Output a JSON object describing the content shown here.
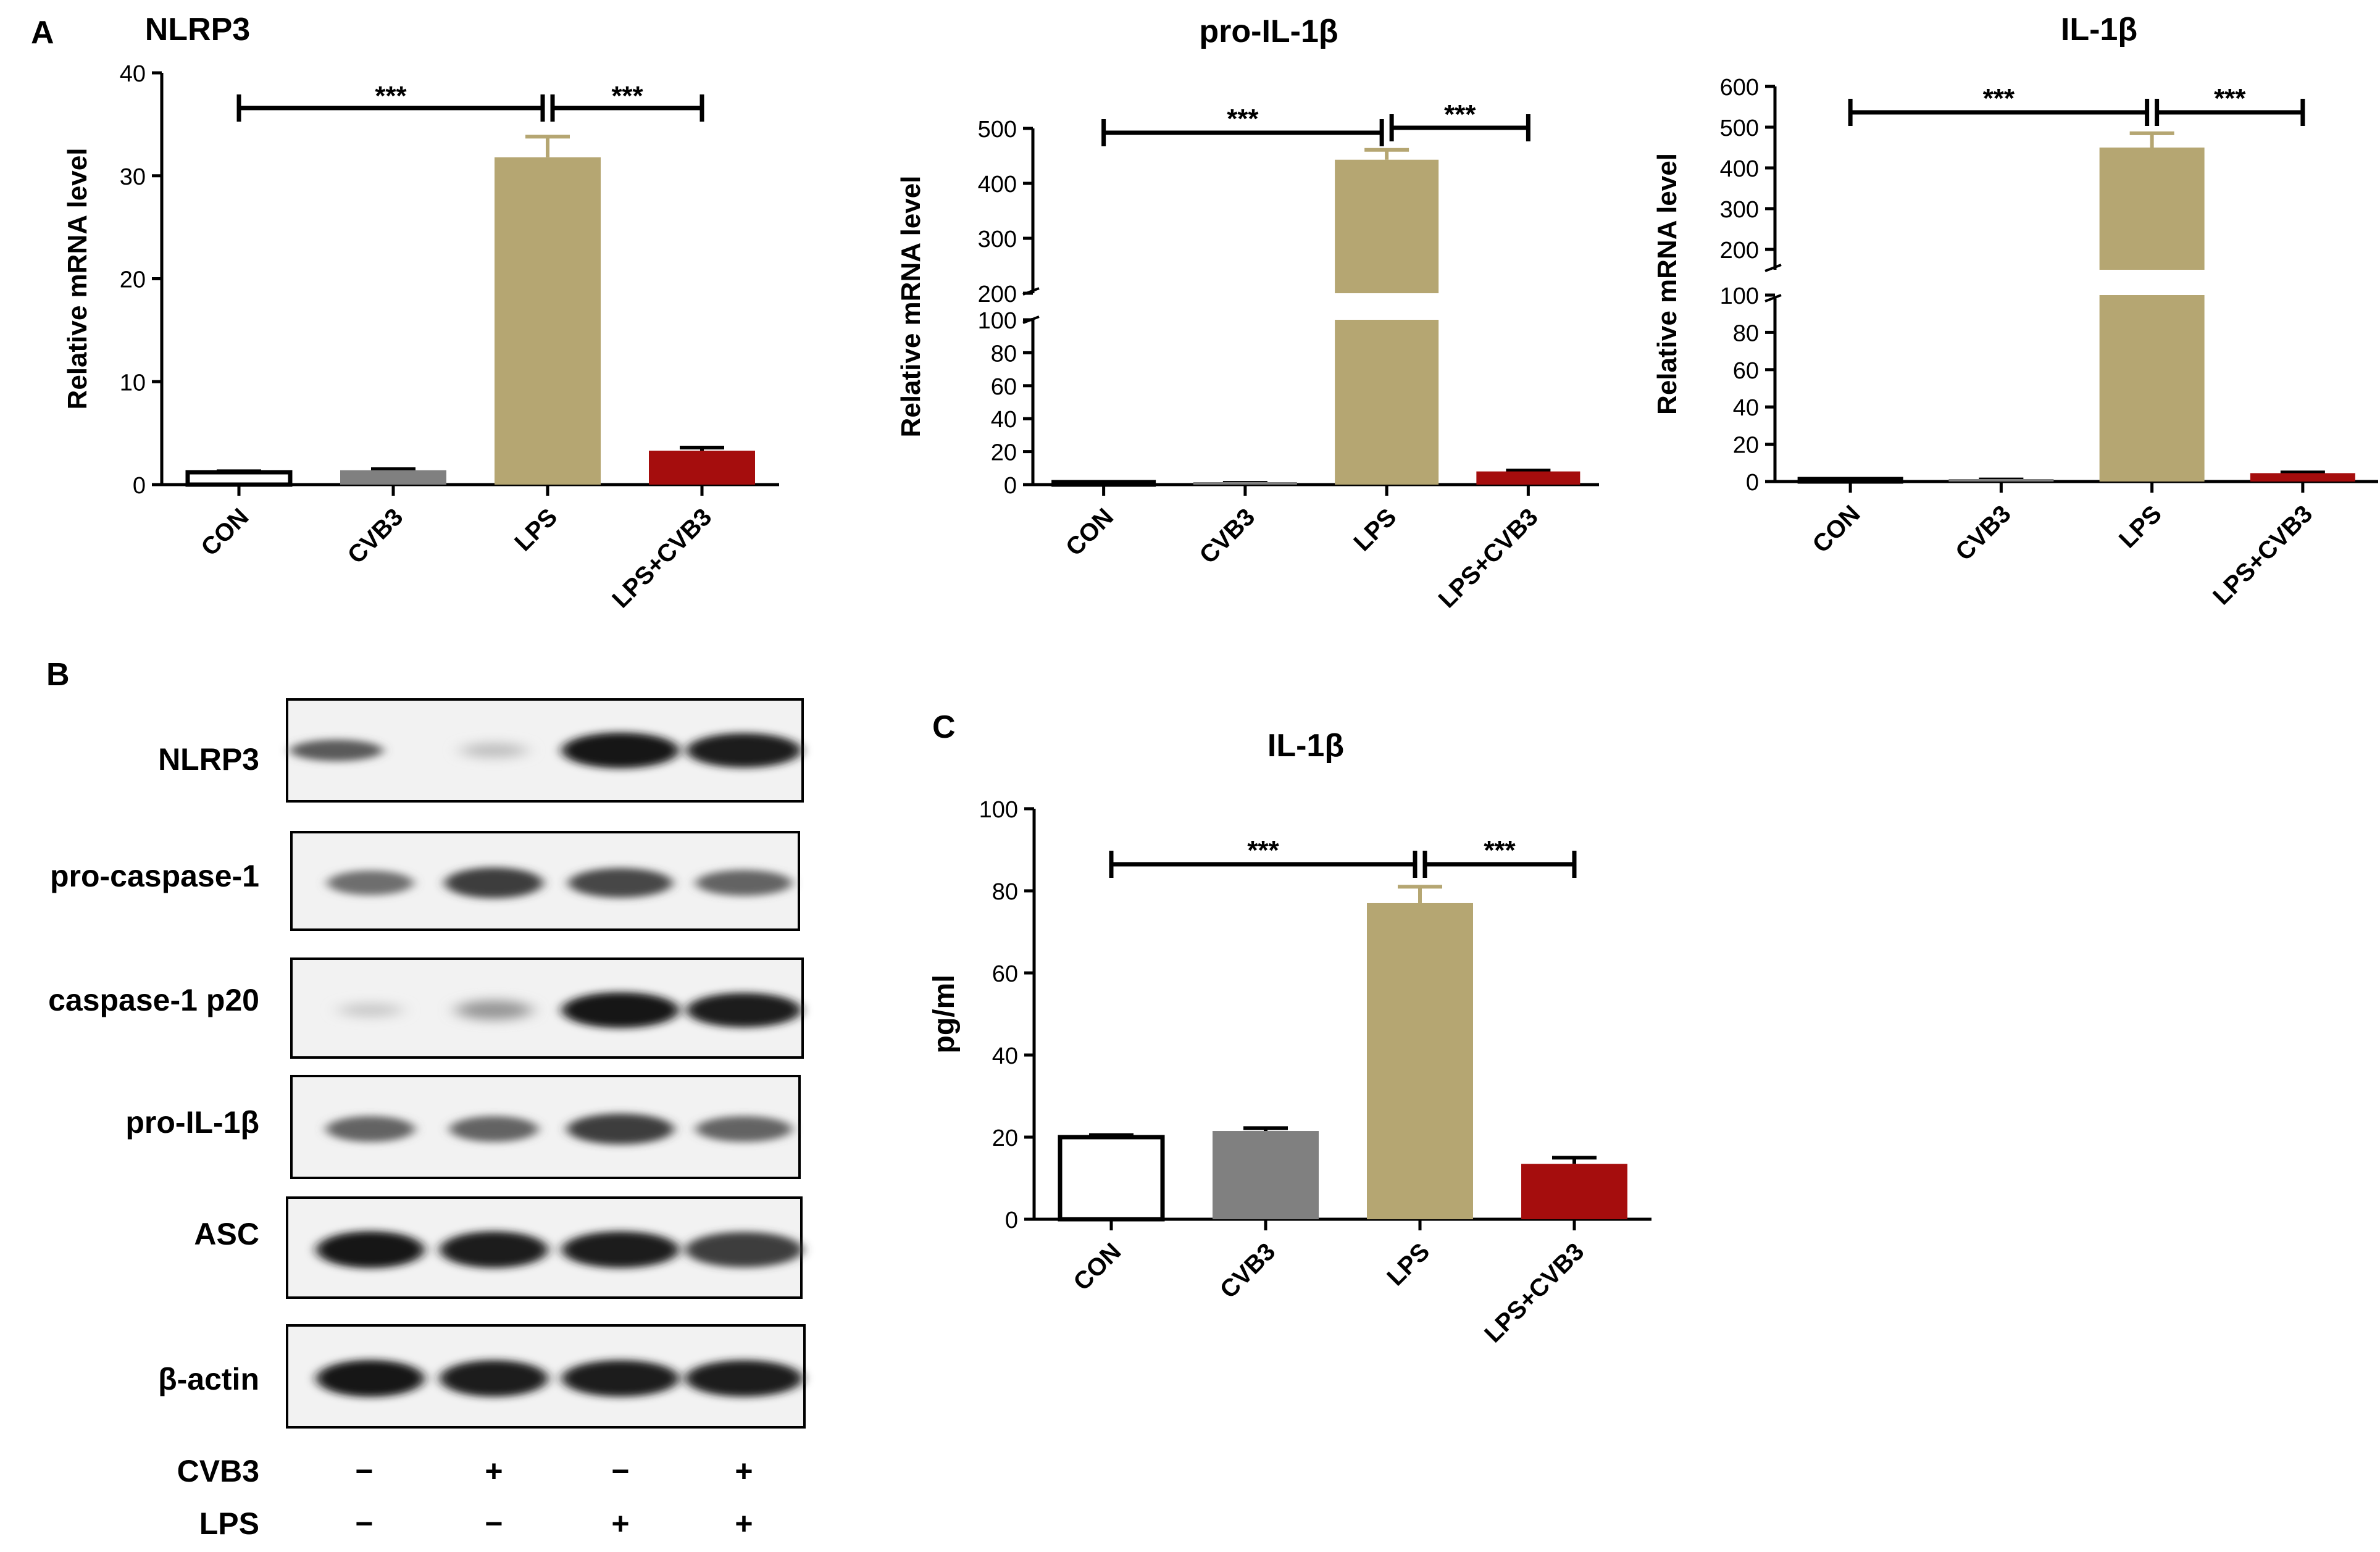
{
  "panels": {
    "A": "A",
    "B": "B",
    "C": "C"
  },
  "sig_label": "***",
  "colors": {
    "CON": "#ffffff",
    "CVB3": "#808080",
    "LPS": "#b5a672",
    "LPS+CVB3": "#a50d0d",
    "LPS_err": "#b5a672",
    "axis": "#000000"
  },
  "chart_data": [
    {
      "type": "bar",
      "title": "NLRP3",
      "ylabel": "Relative mRNA level",
      "categories": [
        "CON",
        "CVB3",
        "LPS",
        "LPS+CVB3"
      ],
      "values": [
        1.2,
        1.4,
        31.8,
        3.3
      ],
      "errors": [
        0.1,
        0.1,
        2.0,
        0.3
      ],
      "ylim": [
        0,
        40
      ],
      "yticks": [
        "0",
        "10",
        "20",
        "30",
        "40"
      ],
      "broken_axis": false,
      "significance": [
        {
          "from": "CON",
          "to": "LPS",
          "label": "***"
        },
        {
          "from": "LPS",
          "to": "LPS+CVB3",
          "label": "***"
        }
      ]
    },
    {
      "type": "bar",
      "title": "pro-IL-1β",
      "ylabel": "Relative mRNA level",
      "categories": [
        "CON",
        "CVB3",
        "LPS",
        "LPS+CVB3"
      ],
      "values": [
        1.0,
        1.0,
        443,
        8.0
      ],
      "errors": [
        0.1,
        0.1,
        18,
        0.5
      ],
      "broken_axis": true,
      "lower_range": [
        0,
        100
      ],
      "upper_range": [
        200,
        500
      ],
      "lower_ticks": [
        "0",
        "20",
        "40",
        "60",
        "80",
        "100"
      ],
      "upper_ticks": [
        "200",
        "300",
        "400",
        "500"
      ],
      "significance": [
        {
          "from": "CON",
          "to": "LPS",
          "label": "***"
        },
        {
          "from": "LPS",
          "to": "LPS+CVB3",
          "label": "***"
        }
      ]
    },
    {
      "type": "bar",
      "title": "IL-1β",
      "ylabel": "Relative mRNA level",
      "categories": [
        "CON",
        "CVB3",
        "LPS",
        "LPS+CVB3"
      ],
      "values": [
        1.0,
        1.0,
        450,
        4.5
      ],
      "errors": [
        0.1,
        0.1,
        35,
        0.4
      ],
      "broken_axis": true,
      "lower_range": [
        0,
        100
      ],
      "upper_range": [
        150,
        600
      ],
      "lower_ticks": [
        "0",
        "20",
        "40",
        "60",
        "80",
        "100"
      ],
      "upper_ticks": [
        "200",
        "300",
        "400",
        "500",
        "600"
      ],
      "significance": [
        {
          "from": "CON",
          "to": "LPS",
          "label": "***"
        },
        {
          "from": "LPS",
          "to": "LPS+CVB3",
          "label": "***"
        }
      ]
    },
    {
      "type": "bar",
      "title": "IL-1β",
      "ylabel": "pg/ml",
      "categories": [
        "CON",
        "CVB3",
        "LPS",
        "LPS+CVB3"
      ],
      "values": [
        20,
        21.5,
        77,
        13.5
      ],
      "errors": [
        0.5,
        0.7,
        4,
        1.5
      ],
      "ylim": [
        0,
        100
      ],
      "yticks": [
        "0",
        "20",
        "40",
        "60",
        "80",
        "100"
      ],
      "broken_axis": false,
      "significance": [
        {
          "from": "CON",
          "to": "LPS",
          "label": "***"
        },
        {
          "from": "LPS",
          "to": "LPS+CVB3",
          "label": "***"
        }
      ]
    }
  ],
  "western_blot": {
    "proteins": [
      "NLRP3",
      "pro-caspase-1",
      "caspase-1 p20",
      "pro-IL-1β",
      "ASC",
      "β-actin"
    ],
    "band_intensity": [
      [
        0.65,
        0.15,
        1.0,
        0.95
      ],
      [
        0.55,
        0.8,
        0.75,
        0.6
      ],
      [
        0.1,
        0.35,
        1.0,
        0.95
      ],
      [
        0.6,
        0.6,
        0.8,
        0.6
      ],
      [
        1.0,
        0.95,
        0.95,
        0.8
      ],
      [
        1.0,
        0.95,
        0.95,
        0.95
      ]
    ],
    "conditions": [
      {
        "label": "CVB3",
        "signs": [
          "−",
          "+",
          "−",
          "+"
        ]
      },
      {
        "label": "LPS",
        "signs": [
          "−",
          "−",
          "+",
          "+"
        ]
      }
    ]
  }
}
